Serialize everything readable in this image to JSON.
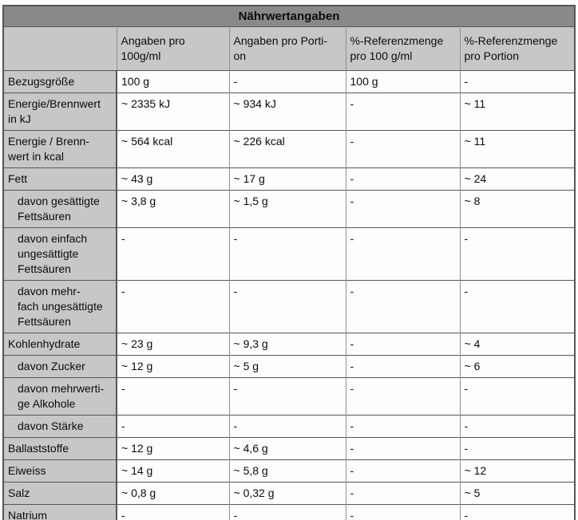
{
  "table": {
    "title": "Nährwertangaben",
    "columns": [
      "",
      "Angaben pro\n100g/ml",
      "Angaben pro Porti-\non",
      "%-Referenzmenge\npro 100 g/ml",
      "%-Referenzmenge\npro Portion"
    ],
    "rows": [
      {
        "label": "Bezugsgröße",
        "indent": false,
        "values": [
          "100 g",
          "-",
          "100 g",
          "-"
        ]
      },
      {
        "label": "Energie/Brennwert\nin kJ",
        "indent": false,
        "values": [
          "~ 2335 kJ",
          "~ 934 kJ",
          "-",
          "~ 11"
        ]
      },
      {
        "label": "Energie / Brenn-\nwert in kcal",
        "indent": false,
        "values": [
          "~ 564 kcal",
          "~ 226 kcal",
          "-",
          "~ 11"
        ]
      },
      {
        "label": "Fett",
        "indent": false,
        "values": [
          "~ 43 g",
          "~ 17 g",
          "-",
          "~ 24"
        ]
      },
      {
        "label": "davon gesättigte\nFettsäuren",
        "indent": true,
        "values": [
          "~ 3,8 g",
          "~ 1,5 g",
          "-",
          "~ 8"
        ]
      },
      {
        "label": "davon einfach\nungesättigte\nFettsäuren",
        "indent": true,
        "values": [
          "-",
          "-",
          "-",
          "-"
        ]
      },
      {
        "label": "davon mehr-\nfach ungesättigte\nFettsäuren",
        "indent": true,
        "values": [
          "-",
          "-",
          "-",
          "-"
        ]
      },
      {
        "label": "Kohlenhydrate",
        "indent": false,
        "values": [
          "~ 23 g",
          "~ 9,3 g",
          "-",
          "~ 4"
        ]
      },
      {
        "label": "davon Zucker",
        "indent": true,
        "values": [
          "~ 12 g",
          "~ 5 g",
          "-",
          "~ 6"
        ]
      },
      {
        "label": "davon mehrwerti-\nge Alkohole",
        "indent": true,
        "values": [
          "-",
          "-",
          "-",
          "-"
        ]
      },
      {
        "label": "davon Stärke",
        "indent": true,
        "values": [
          "-",
          "-",
          "-",
          "-"
        ]
      },
      {
        "label": "Ballaststoffe",
        "indent": false,
        "values": [
          "~ 12 g",
          "~ 4,6 g",
          "-",
          "-"
        ]
      },
      {
        "label": "Eiweiss",
        "indent": false,
        "values": [
          "~ 14 g",
          "~ 5,8 g",
          "-",
          "~ 12"
        ]
      },
      {
        "label": "Salz",
        "indent": false,
        "values": [
          "~ 0,8 g",
          "~ 0,32 g",
          "-",
          "~ 5"
        ]
      },
      {
        "label": "Natrium",
        "indent": false,
        "values": [
          "-",
          "-",
          "-",
          "-"
        ]
      }
    ]
  },
  "colors": {
    "title_bg": "#898989",
    "header_bg": "#c7c7c7",
    "label_bg": "#c7c7c7",
    "cell_bg": "#fdfdfd",
    "border_dark": "#565656",
    "border_mid": "#8f8f8f",
    "text": "#0b0b0b"
  }
}
